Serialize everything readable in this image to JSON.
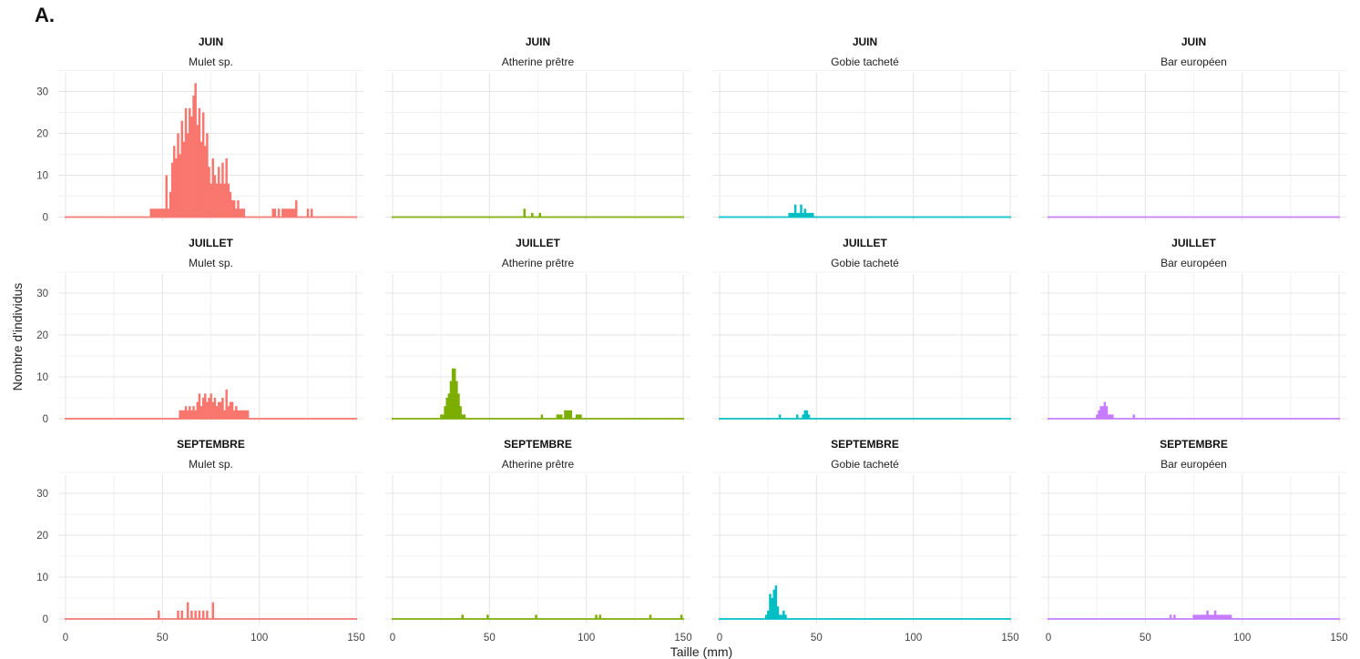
{
  "panel_label": "A.",
  "chart_data": {
    "type": "bar",
    "kind": "faceted histogram",
    "ylabel": "Nombre d'individus",
    "xlabel": "Taille (mm)",
    "xlim": [
      0,
      150
    ],
    "ylim": [
      0,
      33
    ],
    "xticks": [
      0,
      50,
      100,
      150
    ],
    "yticks": [
      0,
      10,
      20,
      30
    ],
    "grid": true,
    "bin_width_mm": 1,
    "species": [
      {
        "name": "Mulet sp.",
        "color": "#F8766D"
      },
      {
        "name": "Atherine prêtre",
        "color": "#7CAE00"
      },
      {
        "name": "Gobie tacheté",
        "color": "#00BFC4"
      },
      {
        "name": "Bar européen",
        "color": "#C77CFF"
      }
    ],
    "months": [
      "JUIN",
      "JUILLET",
      "SEPTEMBRE"
    ],
    "panels": [
      {
        "month": "JUIN",
        "species": "Mulet sp.",
        "bins": [
          [
            44,
            2
          ],
          [
            45,
            2
          ],
          [
            46,
            2
          ],
          [
            47,
            2
          ],
          [
            48,
            2
          ],
          [
            49,
            2
          ],
          [
            50,
            2
          ],
          [
            51,
            2
          ],
          [
            52,
            10
          ],
          [
            53,
            2
          ],
          [
            54,
            6
          ],
          [
            55,
            13
          ],
          [
            56,
            17
          ],
          [
            57,
            14
          ],
          [
            58,
            20
          ],
          [
            59,
            15
          ],
          [
            60,
            23
          ],
          [
            61,
            18
          ],
          [
            62,
            26
          ],
          [
            63,
            20
          ],
          [
            64,
            26
          ],
          [
            65,
            24
          ],
          [
            66,
            29
          ],
          [
            67,
            32
          ],
          [
            68,
            22
          ],
          [
            69,
            26
          ],
          [
            70,
            18
          ],
          [
            71,
            25
          ],
          [
            72,
            17
          ],
          [
            73,
            20
          ],
          [
            74,
            12
          ],
          [
            75,
            8
          ],
          [
            76,
            14
          ],
          [
            77,
            10
          ],
          [
            78,
            8
          ],
          [
            79,
            12
          ],
          [
            80,
            8
          ],
          [
            81,
            13
          ],
          [
            82,
            8
          ],
          [
            83,
            14
          ],
          [
            84,
            8
          ],
          [
            85,
            6
          ],
          [
            86,
            4
          ],
          [
            87,
            4
          ],
          [
            88,
            2
          ],
          [
            89,
            4
          ],
          [
            90,
            2
          ],
          [
            91,
            2
          ],
          [
            92,
            2
          ],
          [
            107,
            2
          ],
          [
            108,
            2
          ],
          [
            110,
            2
          ],
          [
            112,
            2
          ],
          [
            113,
            2
          ],
          [
            114,
            2
          ],
          [
            115,
            2
          ],
          [
            116,
            2
          ],
          [
            117,
            2
          ],
          [
            118,
            2
          ],
          [
            119,
            4
          ],
          [
            125,
            2
          ],
          [
            127,
            2
          ]
        ]
      },
      {
        "month": "JUIN",
        "species": "Atherine prêtre",
        "bins": [
          [
            68,
            2
          ],
          [
            72,
            1
          ],
          [
            76,
            1
          ]
        ]
      },
      {
        "month": "JUIN",
        "species": "Gobie tacheté",
        "bins": [
          [
            36,
            1
          ],
          [
            37,
            1
          ],
          [
            38,
            1
          ],
          [
            39,
            3
          ],
          [
            40,
            1
          ],
          [
            41,
            1
          ],
          [
            42,
            3
          ],
          [
            43,
            1
          ],
          [
            44,
            2
          ],
          [
            45,
            1
          ],
          [
            46,
            1
          ],
          [
            47,
            1
          ],
          [
            48,
            1
          ]
        ]
      },
      {
        "month": "JUIN",
        "species": "Bar européen",
        "bins": []
      },
      {
        "month": "JUILLET",
        "species": "Mulet sp.",
        "bins": [
          [
            59,
            2
          ],
          [
            60,
            2
          ],
          [
            61,
            2
          ],
          [
            62,
            3
          ],
          [
            63,
            2
          ],
          [
            64,
            3
          ],
          [
            65,
            2
          ],
          [
            66,
            3
          ],
          [
            67,
            2
          ],
          [
            68,
            4
          ],
          [
            69,
            6
          ],
          [
            70,
            3
          ],
          [
            71,
            5
          ],
          [
            72,
            6
          ],
          [
            73,
            4
          ],
          [
            74,
            5
          ],
          [
            75,
            6
          ],
          [
            76,
            4
          ],
          [
            77,
            5
          ],
          [
            78,
            3
          ],
          [
            79,
            4
          ],
          [
            80,
            4
          ],
          [
            81,
            5
          ],
          [
            82,
            2
          ],
          [
            83,
            7
          ],
          [
            84,
            3
          ],
          [
            85,
            4
          ],
          [
            86,
            4
          ],
          [
            87,
            2
          ],
          [
            88,
            3
          ],
          [
            89,
            2
          ],
          [
            90,
            2
          ],
          [
            91,
            2
          ],
          [
            92,
            2
          ],
          [
            93,
            2
          ],
          [
            94,
            2
          ]
        ]
      },
      {
        "month": "JUILLET",
        "species": "Atherine prêtre",
        "bins": [
          [
            25,
            1
          ],
          [
            26,
            1
          ],
          [
            27,
            3
          ],
          [
            28,
            5
          ],
          [
            29,
            6
          ],
          [
            30,
            9
          ],
          [
            31,
            12
          ],
          [
            32,
            12
          ],
          [
            33,
            9
          ],
          [
            34,
            6
          ],
          [
            35,
            3
          ],
          [
            36,
            1
          ],
          [
            37,
            1
          ],
          [
            77,
            1
          ],
          [
            85,
            1
          ],
          [
            86,
            1
          ],
          [
            87,
            1
          ],
          [
            89,
            2
          ],
          [
            90,
            2
          ],
          [
            91,
            2
          ],
          [
            92,
            2
          ],
          [
            95,
            1
          ],
          [
            96,
            1
          ],
          [
            97,
            1
          ]
        ]
      },
      {
        "month": "JUILLET",
        "species": "Gobie tacheté",
        "bins": [
          [
            31,
            1
          ],
          [
            40,
            1
          ],
          [
            43,
            1
          ],
          [
            44,
            2
          ],
          [
            45,
            2
          ],
          [
            46,
            1
          ]
        ]
      },
      {
        "month": "JUILLET",
        "species": "Bar européen",
        "bins": [
          [
            25,
            1
          ],
          [
            26,
            2
          ],
          [
            27,
            3
          ],
          [
            28,
            3
          ],
          [
            29,
            4
          ],
          [
            30,
            3
          ],
          [
            31,
            1
          ],
          [
            32,
            1
          ],
          [
            33,
            1
          ],
          [
            44,
            1
          ]
        ]
      },
      {
        "month": "SEPTEMBRE",
        "species": "Mulet sp.",
        "bins": [
          [
            48,
            2
          ],
          [
            58,
            2
          ],
          [
            60,
            2
          ],
          [
            63,
            4
          ],
          [
            65,
            2
          ],
          [
            67,
            2
          ],
          [
            69,
            2
          ],
          [
            71,
            2
          ],
          [
            73,
            2
          ],
          [
            76,
            4
          ]
        ]
      },
      {
        "month": "SEPTEMBRE",
        "species": "Atherine prêtre",
        "bins": [
          [
            36,
            1
          ],
          [
            49,
            1
          ],
          [
            74,
            1
          ],
          [
            105,
            1
          ],
          [
            107,
            1
          ],
          [
            133,
            1
          ],
          [
            149,
            1
          ]
        ]
      },
      {
        "month": "SEPTEMBRE",
        "species": "Gobie tacheté",
        "bins": [
          [
            24,
            1
          ],
          [
            25,
            2
          ],
          [
            26,
            6
          ],
          [
            27,
            5
          ],
          [
            28,
            7
          ],
          [
            29,
            8
          ],
          [
            30,
            3
          ],
          [
            31,
            1
          ],
          [
            32,
            1
          ],
          [
            33,
            2
          ],
          [
            34,
            1
          ]
        ]
      },
      {
        "month": "SEPTEMBRE",
        "species": "Bar européen",
        "bins": [
          [
            63,
            1
          ],
          [
            65,
            1
          ],
          [
            75,
            1
          ],
          [
            76,
            1
          ],
          [
            77,
            1
          ],
          [
            78,
            1
          ],
          [
            79,
            1
          ],
          [
            80,
            1
          ],
          [
            81,
            1
          ],
          [
            82,
            2
          ],
          [
            83,
            1
          ],
          [
            84,
            1
          ],
          [
            85,
            1
          ],
          [
            86,
            2
          ],
          [
            87,
            1
          ],
          [
            88,
            1
          ],
          [
            89,
            1
          ],
          [
            90,
            1
          ],
          [
            91,
            1
          ],
          [
            92,
            1
          ],
          [
            93,
            1
          ],
          [
            94,
            1
          ]
        ]
      }
    ]
  }
}
